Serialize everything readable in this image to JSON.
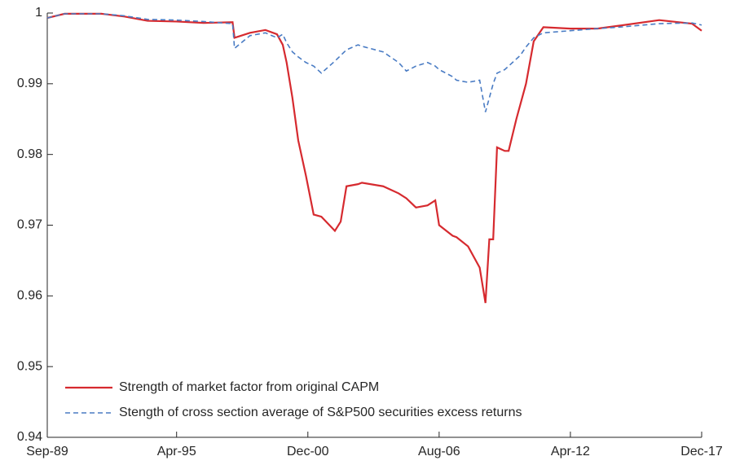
{
  "chart_data": {
    "type": "line",
    "x": [
      "1989-09",
      "1990-06",
      "1992-01",
      "1993-01",
      "1994-01",
      "1995-04",
      "1996-06",
      "1997-09",
      "1997-10",
      "1998-06",
      "1999-02",
      "1999-08",
      "1999-11",
      "2000-01",
      "2000-04",
      "2000-07",
      "2000-11",
      "2001-03",
      "2001-07",
      "2002-02",
      "2002-05",
      "2002-08",
      "2003-02",
      "2003-04",
      "2004-03",
      "2004-11",
      "2005-03",
      "2005-08",
      "2006-02",
      "2006-06",
      "2006-08",
      "2007-03",
      "2007-05",
      "2007-11",
      "2008-05",
      "2008-08",
      "2008-10",
      "2008-12",
      "2009-02",
      "2009-06",
      "2009-08",
      "2009-12",
      "2010-02",
      "2010-05",
      "2010-09",
      "2011-02",
      "2012-04",
      "2013-06",
      "2014-05",
      "2016-02",
      "2017-07",
      "2017-12"
    ],
    "series": [
      {
        "name": "Strength of market factor from original CAPM",
        "color": "#d62a2f",
        "dash": false,
        "values": [
          0.9993,
          0.9999,
          0.9999,
          0.9995,
          0.9989,
          0.9988,
          0.9986,
          0.9987,
          0.9965,
          0.9972,
          0.9976,
          0.997,
          0.9955,
          0.993,
          0.988,
          0.982,
          0.977,
          0.9715,
          0.9712,
          0.9692,
          0.9705,
          0.9755,
          0.9758,
          0.976,
          0.9755,
          0.9745,
          0.9738,
          0.9725,
          0.9728,
          0.9735,
          0.97,
          0.9685,
          0.9683,
          0.967,
          0.964,
          0.959,
          0.968,
          0.968,
          0.981,
          0.9805,
          0.9805,
          0.985,
          0.987,
          0.99,
          0.996,
          0.998,
          0.9978,
          0.9978,
          0.9982,
          0.999,
          0.9985,
          0.9975
        ]
      },
      {
        "name": "Stength of cross section average of S&P500 securities excess returns",
        "color": "#4a7cc4",
        "dash": true,
        "values": [
          0.9993,
          0.9999,
          0.9999,
          0.9996,
          0.9991,
          0.999,
          0.9988,
          0.9985,
          0.995,
          0.9968,
          0.9972,
          0.9965,
          0.997,
          0.9958,
          0.9945,
          0.9938,
          0.993,
          0.9925,
          0.9915,
          0.9932,
          0.994,
          0.9948,
          0.9955,
          0.9953,
          0.9945,
          0.993,
          0.9918,
          0.9925,
          0.993,
          0.9925,
          0.992,
          0.991,
          0.9905,
          0.9902,
          0.9905,
          0.986,
          0.988,
          0.99,
          0.9915,
          0.992,
          0.9925,
          0.9935,
          0.994,
          0.9952,
          0.9965,
          0.9972,
          0.9975,
          0.9978,
          0.998,
          0.9985,
          0.9986,
          0.9983
        ]
      }
    ],
    "xlim": [
      "1989-09",
      "2017-12"
    ],
    "xticks": [
      {
        "value": "1989-09",
        "label": "Sep-89"
      },
      {
        "value": "1995-04",
        "label": "Apr-95"
      },
      {
        "value": "2000-12",
        "label": "Dec-00"
      },
      {
        "value": "2006-08",
        "label": "Aug-06"
      },
      {
        "value": "2012-04",
        "label": "Apr-12"
      },
      {
        "value": "2017-12",
        "label": "Dec-17"
      }
    ],
    "ylim": [
      0.94,
      1
    ],
    "yticks": [
      0.94,
      0.95,
      0.96,
      0.97,
      0.98,
      0.99,
      1
    ],
    "legend": "lower left",
    "grid": false
  }
}
